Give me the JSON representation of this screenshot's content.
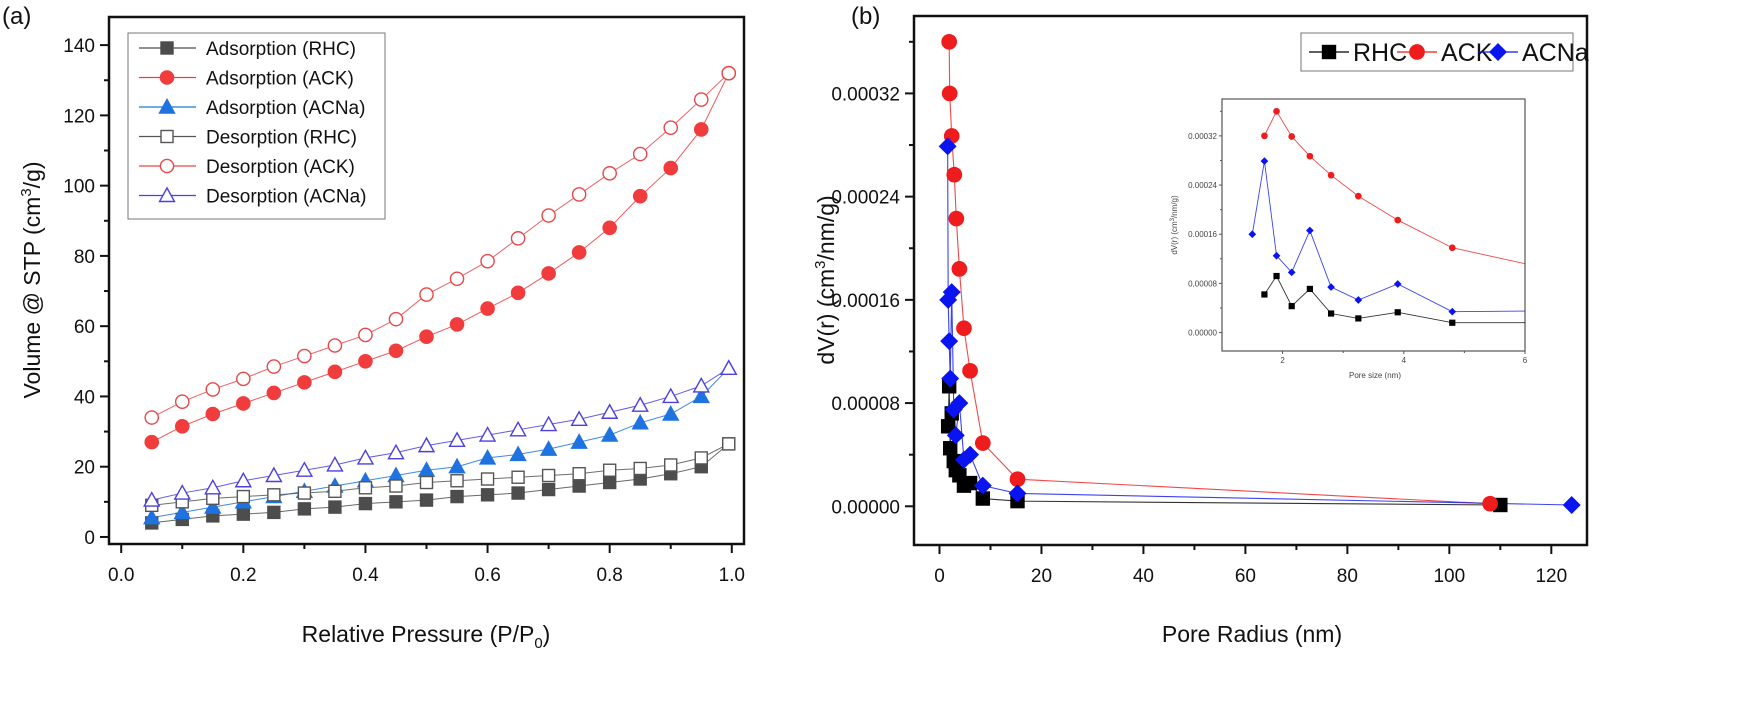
{
  "chart_data": [
    {
      "panel": "(a)",
      "type": "scatter",
      "title": "",
      "xlabel": "Relative Pressure (P/P0)",
      "xlabel_parts": {
        "main": "Relative Pressure (P/P",
        "sub": "0",
        "end": ")"
      },
      "ylabel": "Volume @ STP (cm3/g)",
      "ylabel_parts": {
        "main": "Volume @ STP (cm",
        "sup": "3",
        "end": "/g)"
      },
      "xlim": [
        -0.02,
        1.02
      ],
      "ylim": [
        -2,
        148
      ],
      "xticks": [
        0.0,
        0.2,
        0.4,
        0.6,
        0.8,
        1.0
      ],
      "xtick_labels": [
        "0.0",
        "0.2",
        "0.4",
        "0.6",
        "0.8",
        "1.0"
      ],
      "yticks": [
        0,
        20,
        40,
        60,
        80,
        100,
        120,
        140
      ],
      "ytick_labels": [
        "0",
        "20",
        "40",
        "60",
        "80",
        "100",
        "120",
        "140"
      ],
      "legend_position": "top-left",
      "x": [
        0.05,
        0.1,
        0.15,
        0.2,
        0.25,
        0.3,
        0.35,
        0.4,
        0.45,
        0.5,
        0.55,
        0.6,
        0.65,
        0.7,
        0.75,
        0.8,
        0.85,
        0.9,
        0.95,
        0.995
      ],
      "series": [
        {
          "name": "Adsorption (RHC)",
          "color": "#4d4d4d",
          "marker": "square",
          "filled": true,
          "values": [
            4,
            5,
            6,
            6.5,
            7,
            8,
            8.5,
            9.5,
            10,
            10.5,
            11.5,
            12,
            12.5,
            13.5,
            14.5,
            15.5,
            16.5,
            18,
            20,
            26.5
          ]
        },
        {
          "name": "Adsorption (ACK)",
          "color": "#f03c3c",
          "marker": "circle",
          "filled": true,
          "values": [
            27,
            31.5,
            35,
            38,
            41,
            44,
            47,
            50,
            53,
            57,
            60.5,
            65,
            69.5,
            75,
            81,
            88,
            97,
            105,
            116,
            132
          ]
        },
        {
          "name": "Adsorption (ACNa)",
          "color": "#1e73e0",
          "marker": "triangle",
          "filled": true,
          "values": [
            5.5,
            7,
            8.5,
            10,
            11.5,
            13,
            14.5,
            16,
            17.5,
            19,
            20,
            22.5,
            23.5,
            25,
            27,
            29,
            32.5,
            35,
            40,
            48
          ]
        },
        {
          "name": "Desorption (RHC)",
          "color": "#555555",
          "marker": "square",
          "filled": false,
          "values": [
            9,
            10,
            11,
            11.5,
            12,
            12.5,
            13,
            14,
            14.5,
            15.5,
            16,
            16.5,
            17,
            17.5,
            18,
            19,
            19.5,
            20.5,
            22.5,
            26.5
          ]
        },
        {
          "name": "Desorption (ACK)",
          "color": "#e8474a",
          "marker": "circle",
          "filled": false,
          "values": [
            34,
            38.5,
            42,
            45,
            48.5,
            51.5,
            54.5,
            57.5,
            62,
            69,
            73.5,
            78.5,
            85,
            91.5,
            97.5,
            103.5,
            109,
            116.5,
            124.5,
            132
          ]
        },
        {
          "name": "Desorption (ACNa)",
          "color": "#4b3fe0",
          "marker": "triangle",
          "filled": false,
          "values": [
            10.5,
            12.5,
            14,
            16,
            17.5,
            19,
            20.5,
            22.5,
            24,
            26,
            27.5,
            29,
            30.5,
            32,
            33.5,
            35.5,
            37.5,
            40,
            43,
            48
          ]
        }
      ]
    },
    {
      "panel": "(b)",
      "type": "line",
      "title": "",
      "xlabel": "Pore Radius (nm)",
      "ylabel": "dV(r) (cm3/nm/g)",
      "ylabel_parts": {
        "main": "dV(r) (cm",
        "sup": "3",
        "end": "/nm/g)"
      },
      "xlim": [
        -5,
        127
      ],
      "ylim": [
        -3e-05,
        0.00038
      ],
      "xticks": [
        0,
        20,
        40,
        60,
        80,
        100,
        120
      ],
      "xtick_labels": [
        "0",
        "20",
        "40",
        "60",
        "80",
        "100",
        "120"
      ],
      "yticks": [
        0.0,
        8e-05,
        0.00016,
        0.00024,
        0.00032
      ],
      "ytick_labels": [
        "0.00000",
        "0.00008",
        "0.00016",
        "0.00024",
        "0.00032"
      ],
      "legend_position": "top-right",
      "series": [
        {
          "name": "RHC",
          "color": "#000000",
          "marker": "square",
          "x": [
            1.7,
            1.9,
            2.1,
            2.4,
            2.8,
            3.2,
            3.9,
            4.8,
            6.0,
            8.5,
            15.3,
            110
          ],
          "values": [
            6.2e-05,
            9.3e-05,
            4.5e-05,
            7.2e-05,
            3.5e-05,
            2.8e-05,
            2.4e-05,
            1.6e-05,
            1.8e-05,
            6e-06,
            4e-06,
            1e-06
          ]
        },
        {
          "name": "ACK",
          "color": "#ee1c1c",
          "marker": "circle",
          "x": [
            1.9,
            2.0,
            2.4,
            2.9,
            3.3,
            3.9,
            4.8,
            6.0,
            8.5,
            15.3,
            108
          ],
          "values": [
            0.00036,
            0.00032,
            0.000287,
            0.000257,
            0.000223,
            0.000184,
            0.000138,
            0.000105,
            4.9e-05,
            2.1e-05,
            2e-06
          ]
        },
        {
          "name": "ACNa",
          "color": "#0a14f0",
          "marker": "diamond",
          "x": [
            1.6,
            1.7,
            1.9,
            2.1,
            2.4,
            2.8,
            3.2,
            3.9,
            4.8,
            6.0,
            8.5,
            15.3,
            124
          ],
          "values": [
            0.000279,
            0.00016,
            0.000128,
            9.9e-05,
            0.000166,
            7.5e-05,
            5.5e-05,
            8e-05,
            3.6e-05,
            4e-05,
            1.6e-05,
            1e-05,
            1e-06
          ]
        }
      ],
      "inset": {
        "xlabel": "Pore size (nm)",
        "ylabel": "dV(r) (cm3/nm/g)",
        "ylabel_parts": {
          "main": "dV(r) (cm",
          "sup": "3",
          "end": "/nm/g)"
        },
        "xlim": [
          1.0,
          6.0
        ],
        "ylim": [
          -3e-05,
          0.00038
        ],
        "xticks": [
          2,
          4,
          6
        ],
        "xtick_labels": [
          "2",
          "4",
          "6"
        ],
        "yticks": [
          0.0,
          8e-05,
          0.00016,
          0.00024,
          0.00032
        ],
        "ytick_labels": [
          "0.00000",
          "0.00008",
          "0.00016",
          "0.00024",
          "0.00032"
        ],
        "series": [
          {
            "name": "RHC",
            "color": "#000000",
            "marker": "square",
            "x": [
              1.7,
              1.9,
              2.15,
              2.45,
              2.8,
              3.25,
              3.9,
              4.8,
              6.0
            ],
            "values": [
              6.2e-05,
              9.2e-05,
              4.3e-05,
              7.1e-05,
              3.1e-05,
              2.3e-05,
              3.3e-05,
              1.6e-05,
              1.6e-05
            ]
          },
          {
            "name": "ACK",
            "color": "#ee1c1c",
            "marker": "circle",
            "x": [
              1.7,
              1.9,
              2.15,
              2.45,
              2.8,
              3.25,
              3.9,
              4.8,
              6.0
            ],
            "values": [
              0.00032,
              0.00036,
              0.000319,
              0.000287,
              0.000256,
              0.000222,
              0.000183,
              0.000138,
              0.000112
            ]
          },
          {
            "name": "ACNa",
            "color": "#0a14f0",
            "marker": "diamond",
            "x": [
              1.5,
              1.7,
              1.9,
              2.15,
              2.45,
              2.8,
              3.25,
              3.9,
              4.8,
              6.0
            ],
            "values": [
              0.00016,
              0.000279,
              0.000125,
              9.8e-05,
              0.000166,
              7.4e-05,
              5.3e-05,
              7.9e-05,
              3.4e-05,
              3.5e-05
            ]
          }
        ]
      }
    }
  ]
}
